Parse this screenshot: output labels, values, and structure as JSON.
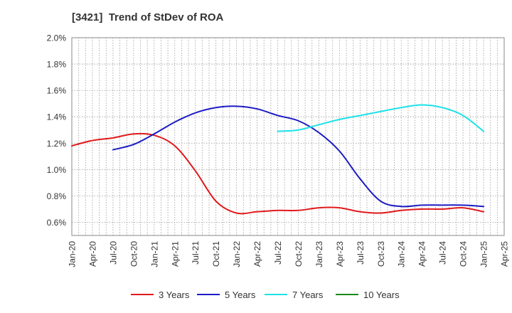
{
  "page": {
    "title": "[3421]  Trend of StDev of ROA"
  },
  "chart_data": {
    "type": "line",
    "title": "[3421]  Trend of StDev of ROA",
    "xlabel": "",
    "ylabel": "",
    "x_ticks": [
      "Jan-20",
      "Apr-20",
      "Jul-20",
      "Oct-20",
      "Jan-21",
      "Apr-21",
      "Jul-21",
      "Oct-21",
      "Jan-22",
      "Apr-22",
      "Jul-22",
      "Oct-22",
      "Jan-23",
      "Apr-23",
      "Jul-23",
      "Oct-23",
      "Jan-24",
      "Apr-24",
      "Jul-24",
      "Oct-24",
      "Jan-25",
      "Apr-25"
    ],
    "y_ticks": [
      "0.6%",
      "0.8%",
      "1.0%",
      "1.2%",
      "1.4%",
      "1.6%",
      "1.8%",
      "2.0%"
    ],
    "ylim": [
      0.5,
      2.0
    ],
    "grid": true,
    "legend_position": "bottom",
    "series": [
      {
        "name": "3 Years",
        "color": "#e0191b",
        "x": [
          "Jan-20",
          "Apr-20",
          "Jul-20",
          "Oct-20",
          "Jan-21",
          "Apr-21",
          "Jul-21",
          "Oct-21",
          "Jan-22",
          "Apr-22",
          "Jul-22",
          "Oct-22",
          "Jan-23",
          "Apr-23",
          "Jul-23",
          "Oct-23",
          "Jan-24",
          "Apr-24",
          "Jul-24",
          "Oct-24",
          "Jan-25"
        ],
        "values": [
          1.18,
          1.22,
          1.24,
          1.27,
          1.26,
          1.18,
          0.99,
          0.76,
          0.67,
          0.68,
          0.69,
          0.69,
          0.71,
          0.71,
          0.68,
          0.67,
          0.69,
          0.7,
          0.7,
          0.71,
          0.68
        ]
      },
      {
        "name": "5 Years",
        "color": "#1c1cc4",
        "x": [
          "Jul-20",
          "Oct-20",
          "Jan-21",
          "Apr-21",
          "Jul-21",
          "Oct-21",
          "Jan-22",
          "Apr-22",
          "Jul-22",
          "Oct-22",
          "Jan-23",
          "Apr-23",
          "Jul-23",
          "Oct-23",
          "Jan-24",
          "Apr-24",
          "Jul-24",
          "Oct-24",
          "Jan-25"
        ],
        "values": [
          1.15,
          1.19,
          1.27,
          1.36,
          1.43,
          1.47,
          1.48,
          1.46,
          1.41,
          1.37,
          1.28,
          1.14,
          0.93,
          0.76,
          0.72,
          0.73,
          0.73,
          0.73,
          0.72
        ]
      },
      {
        "name": "7 Years",
        "color": "#1ee1e8",
        "x": [
          "Jul-22",
          "Oct-22",
          "Jan-23",
          "Apr-23",
          "Jul-23",
          "Oct-23",
          "Jan-24",
          "Apr-24",
          "Jul-24",
          "Oct-24",
          "Jan-25"
        ],
        "values": [
          1.29,
          1.3,
          1.34,
          1.38,
          1.41,
          1.44,
          1.47,
          1.49,
          1.47,
          1.41,
          1.29
        ]
      },
      {
        "name": "10 Years",
        "color": "#1a8a1a",
        "x": [],
        "values": []
      }
    ]
  }
}
